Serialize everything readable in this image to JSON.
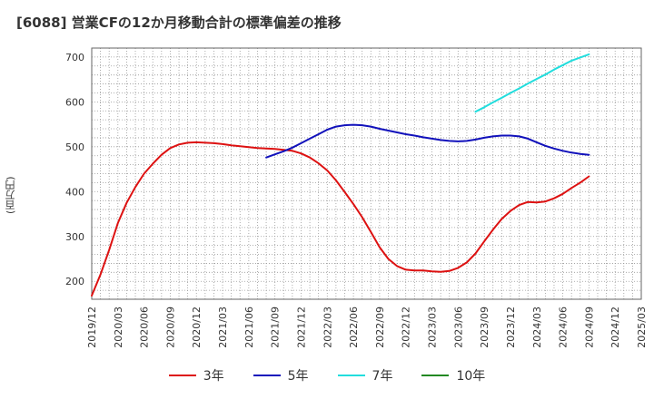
{
  "chart_data": {
    "type": "line",
    "title": "[6088]  営業CFの12か月移動合計の標準偏差の推移",
    "ylabel": "(百万円)",
    "xlabel": "",
    "ylim": [
      160,
      720
    ],
    "yticks": [
      200,
      300,
      400,
      500,
      600,
      700
    ],
    "xlim": [
      "2019-12",
      "2025-03"
    ],
    "xticks": [
      "2019/12",
      "2020/03",
      "2020/06",
      "2020/09",
      "2020/12",
      "2021/03",
      "2021/06",
      "2021/09",
      "2021/12",
      "2022/03",
      "2022/06",
      "2022/09",
      "2022/12",
      "2023/03",
      "2023/06",
      "2023/09",
      "2023/12",
      "2024/03",
      "2024/06",
      "2024/09",
      "2024/12",
      "2025/03"
    ],
    "grid": true,
    "legend_position": "bottom",
    "series": [
      {
        "name": "3年",
        "color": "#dd1111",
        "points": [
          [
            "2019-12",
            168
          ],
          [
            "2020-01",
            215
          ],
          [
            "2020-02",
            270
          ],
          [
            "2020-03",
            330
          ],
          [
            "2020-04",
            375
          ],
          [
            "2020-05",
            410
          ],
          [
            "2020-06",
            440
          ],
          [
            "2020-07",
            462
          ],
          [
            "2020-08",
            482
          ],
          [
            "2020-09",
            497
          ],
          [
            "2020-10",
            505
          ],
          [
            "2020-11",
            509
          ],
          [
            "2020-12",
            510
          ],
          [
            "2021-01",
            509
          ],
          [
            "2021-02",
            508
          ],
          [
            "2021-03",
            506
          ],
          [
            "2021-04",
            503
          ],
          [
            "2021-05",
            501
          ],
          [
            "2021-06",
            499
          ],
          [
            "2021-07",
            497
          ],
          [
            "2021-08",
            496
          ],
          [
            "2021-09",
            495
          ],
          [
            "2021-10",
            493
          ],
          [
            "2021-11",
            491
          ],
          [
            "2021-12",
            485
          ],
          [
            "2022-01",
            476
          ],
          [
            "2022-02",
            463
          ],
          [
            "2022-03",
            447
          ],
          [
            "2022-04",
            425
          ],
          [
            "2022-05",
            399
          ],
          [
            "2022-06",
            372
          ],
          [
            "2022-07",
            343
          ],
          [
            "2022-08",
            310
          ],
          [
            "2022-09",
            276
          ],
          [
            "2022-10",
            250
          ],
          [
            "2022-11",
            234
          ],
          [
            "2022-12",
            226
          ],
          [
            "2023-01",
            224
          ],
          [
            "2023-02",
            224
          ],
          [
            "2023-03",
            222
          ],
          [
            "2023-04",
            221
          ],
          [
            "2023-05",
            223
          ],
          [
            "2023-06",
            230
          ],
          [
            "2023-07",
            242
          ],
          [
            "2023-08",
            262
          ],
          [
            "2023-09",
            289
          ],
          [
            "2023-10",
            315
          ],
          [
            "2023-11",
            339
          ],
          [
            "2023-12",
            357
          ],
          [
            "2024-01",
            370
          ],
          [
            "2024-02",
            377
          ],
          [
            "2024-03",
            376
          ],
          [
            "2024-04",
            378
          ],
          [
            "2024-05",
            385
          ],
          [
            "2024-06",
            395
          ],
          [
            "2024-07",
            408
          ],
          [
            "2024-08",
            420
          ],
          [
            "2024-09",
            434
          ]
        ]
      },
      {
        "name": "5年",
        "color": "#1111bb",
        "points": [
          [
            "2021-08",
            476
          ],
          [
            "2021-09",
            483
          ],
          [
            "2021-10",
            490
          ],
          [
            "2021-11",
            498
          ],
          [
            "2021-12",
            508
          ],
          [
            "2022-01",
            518
          ],
          [
            "2022-02",
            528
          ],
          [
            "2022-03",
            538
          ],
          [
            "2022-04",
            545
          ],
          [
            "2022-05",
            548
          ],
          [
            "2022-06",
            549
          ],
          [
            "2022-07",
            548
          ],
          [
            "2022-08",
            545
          ],
          [
            "2022-09",
            540
          ],
          [
            "2022-10",
            536
          ],
          [
            "2022-11",
            532
          ],
          [
            "2022-12",
            528
          ],
          [
            "2023-01",
            525
          ],
          [
            "2023-02",
            521
          ],
          [
            "2023-03",
            518
          ],
          [
            "2023-04",
            515
          ],
          [
            "2023-05",
            513
          ],
          [
            "2023-06",
            512
          ],
          [
            "2023-07",
            513
          ],
          [
            "2023-08",
            516
          ],
          [
            "2023-09",
            520
          ],
          [
            "2023-10",
            523
          ],
          [
            "2023-11",
            525
          ],
          [
            "2023-12",
            525
          ],
          [
            "2024-01",
            523
          ],
          [
            "2024-02",
            518
          ],
          [
            "2024-03",
            510
          ],
          [
            "2024-04",
            502
          ],
          [
            "2024-05",
            496
          ],
          [
            "2024-06",
            491
          ],
          [
            "2024-07",
            487
          ],
          [
            "2024-08",
            484
          ],
          [
            "2024-09",
            482
          ]
        ]
      },
      {
        "name": "7年",
        "color": "#22dddd",
        "points": [
          [
            "2023-08",
            578
          ],
          [
            "2023-09",
            588
          ],
          [
            "2023-10",
            599
          ],
          [
            "2023-11",
            609
          ],
          [
            "2023-12",
            620
          ],
          [
            "2024-01",
            630
          ],
          [
            "2024-02",
            641
          ],
          [
            "2024-03",
            651
          ],
          [
            "2024-04",
            661
          ],
          [
            "2024-05",
            672
          ],
          [
            "2024-06",
            682
          ],
          [
            "2024-07",
            692
          ],
          [
            "2024-08",
            699
          ],
          [
            "2024-09",
            706
          ]
        ]
      },
      {
        "name": "10年",
        "color": "#228822",
        "points": []
      }
    ]
  }
}
